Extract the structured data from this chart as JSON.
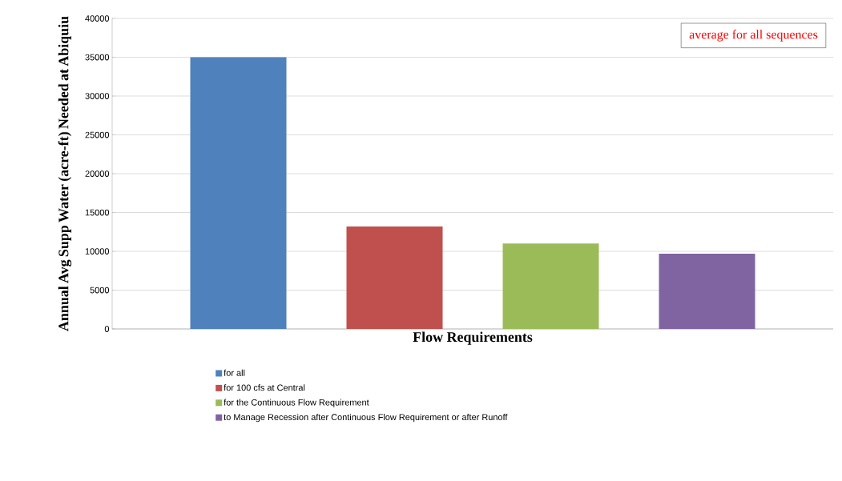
{
  "chart_data": {
    "type": "bar",
    "categories": [
      null
    ],
    "xlabel": "Flow Requirements",
    "ylabel": "Annual Avg Supp Water (acre-ft) Needed at Abiquiu",
    "series": [
      {
        "name": "for all",
        "color": "#4f81bd",
        "values": [
          35000
        ]
      },
      {
        "name": "for 100 cfs at Central",
        "color": "#c0504d",
        "values": [
          13200
        ]
      },
      {
        "name": "for the Continuous Flow Requirement",
        "color": "#9bbb59",
        "values": [
          11000
        ]
      },
      {
        "name": "to Manage Recession after Continuous Flow Requirement or after Runoff",
        "color": "#8064a2",
        "values": [
          9700
        ]
      }
    ],
    "ylim": [
      0,
      40000
    ],
    "yticks": [
      0,
      5000,
      10000,
      15000,
      20000,
      25000,
      30000,
      35000,
      40000
    ],
    "grid": "y",
    "legend": "bottom",
    "annotations": [
      "average for all sequences"
    ]
  }
}
